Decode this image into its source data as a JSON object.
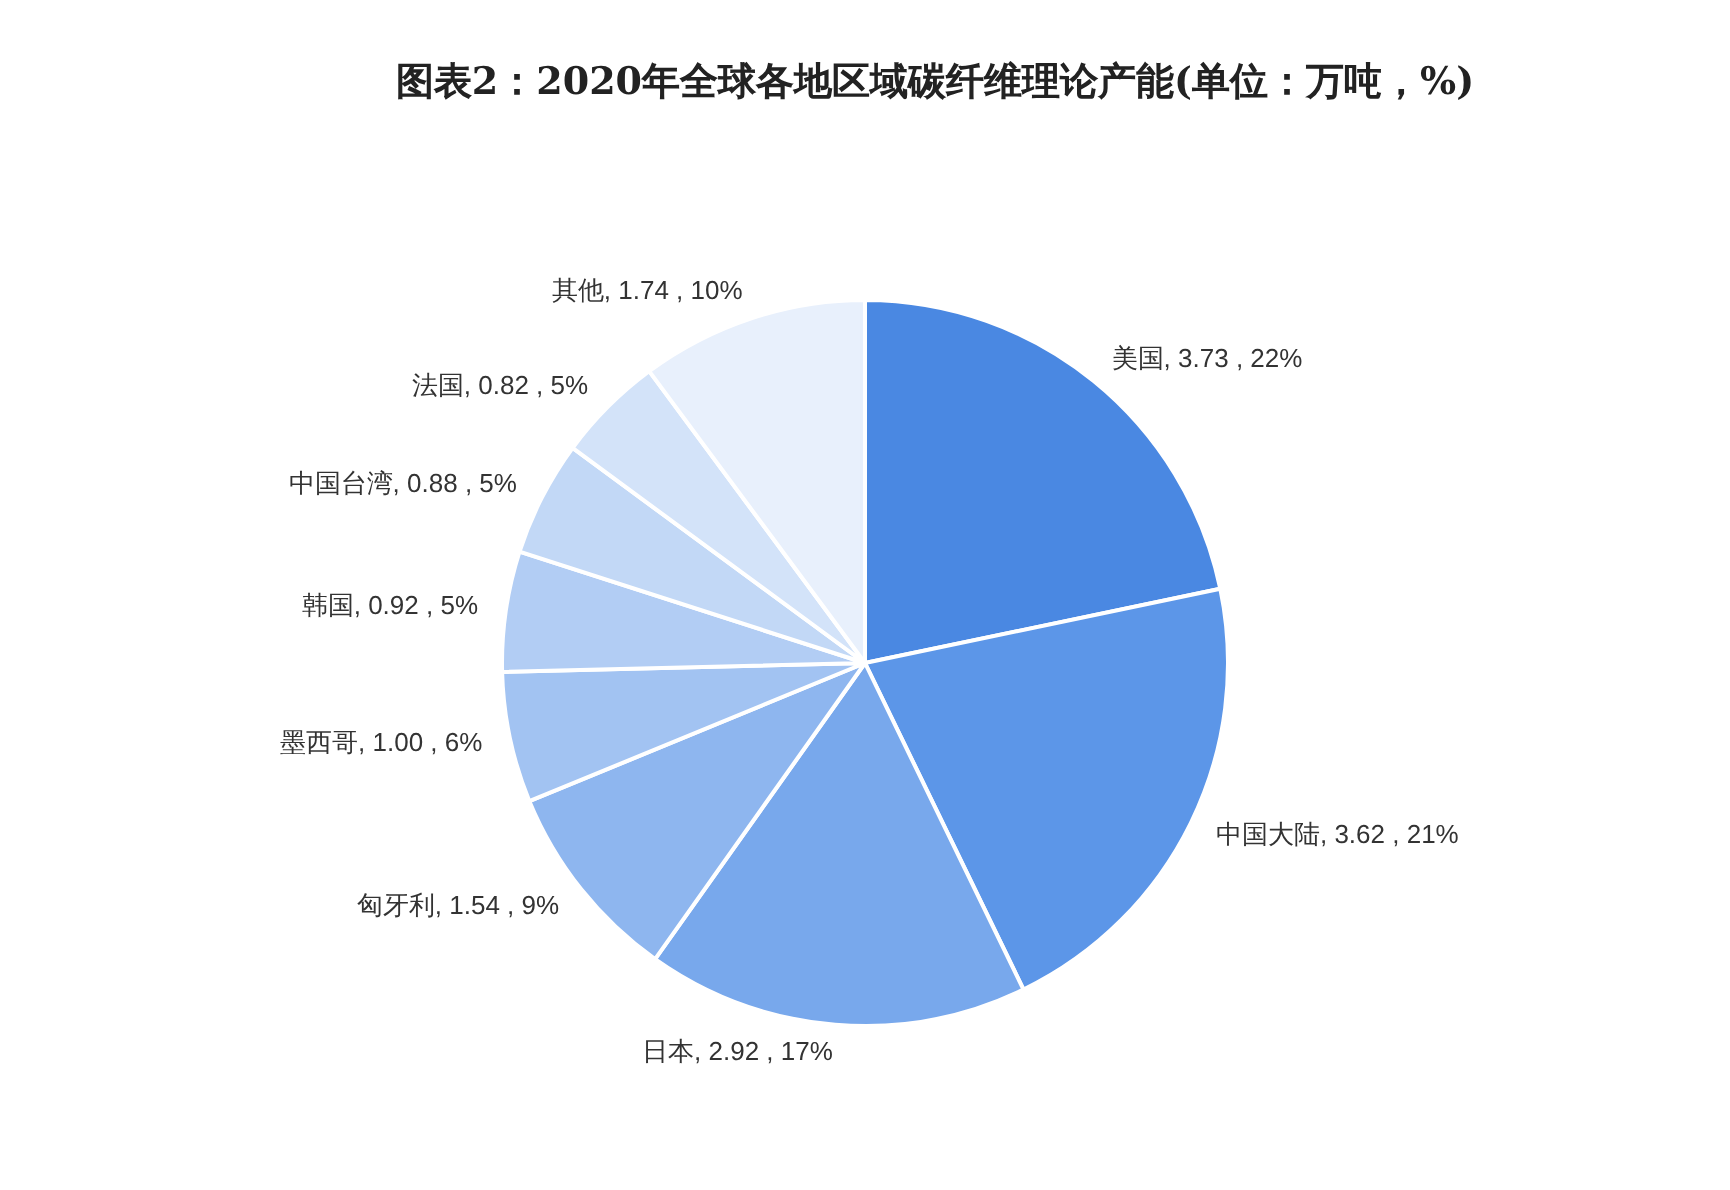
{
  "chart_data": {
    "type": "pie",
    "title": "图表2：2020年全球各地区域碳纤维理论产能(单位：万吨，%)",
    "categories": [
      "美国",
      "中国大陆",
      "日本",
      "匈牙利",
      "墨西哥",
      "韩国",
      "中国台湾",
      "法国",
      "其他"
    ],
    "values": [
      3.73,
      3.62,
      2.92,
      1.54,
      1.0,
      0.92,
      0.88,
      0.82,
      1.74
    ],
    "value_labels": [
      "3.73 , 22%",
      "3.62 , 21%",
      "2.92 , 17%",
      "1.54 , 9%",
      "1.00 , 6%",
      "0.92 , 5%",
      "0.88 , 5%",
      "0.82 , 5%",
      "1.74 , 10%"
    ],
    "colors": [
      "#4a88e2",
      "#5c96e8",
      "#78a8ec",
      "#8eb6ef",
      "#a2c3f2",
      "#b2cdf4",
      "#c2d8f6",
      "#d3e3f9",
      "#e8f0fc"
    ],
    "legend": false
  }
}
